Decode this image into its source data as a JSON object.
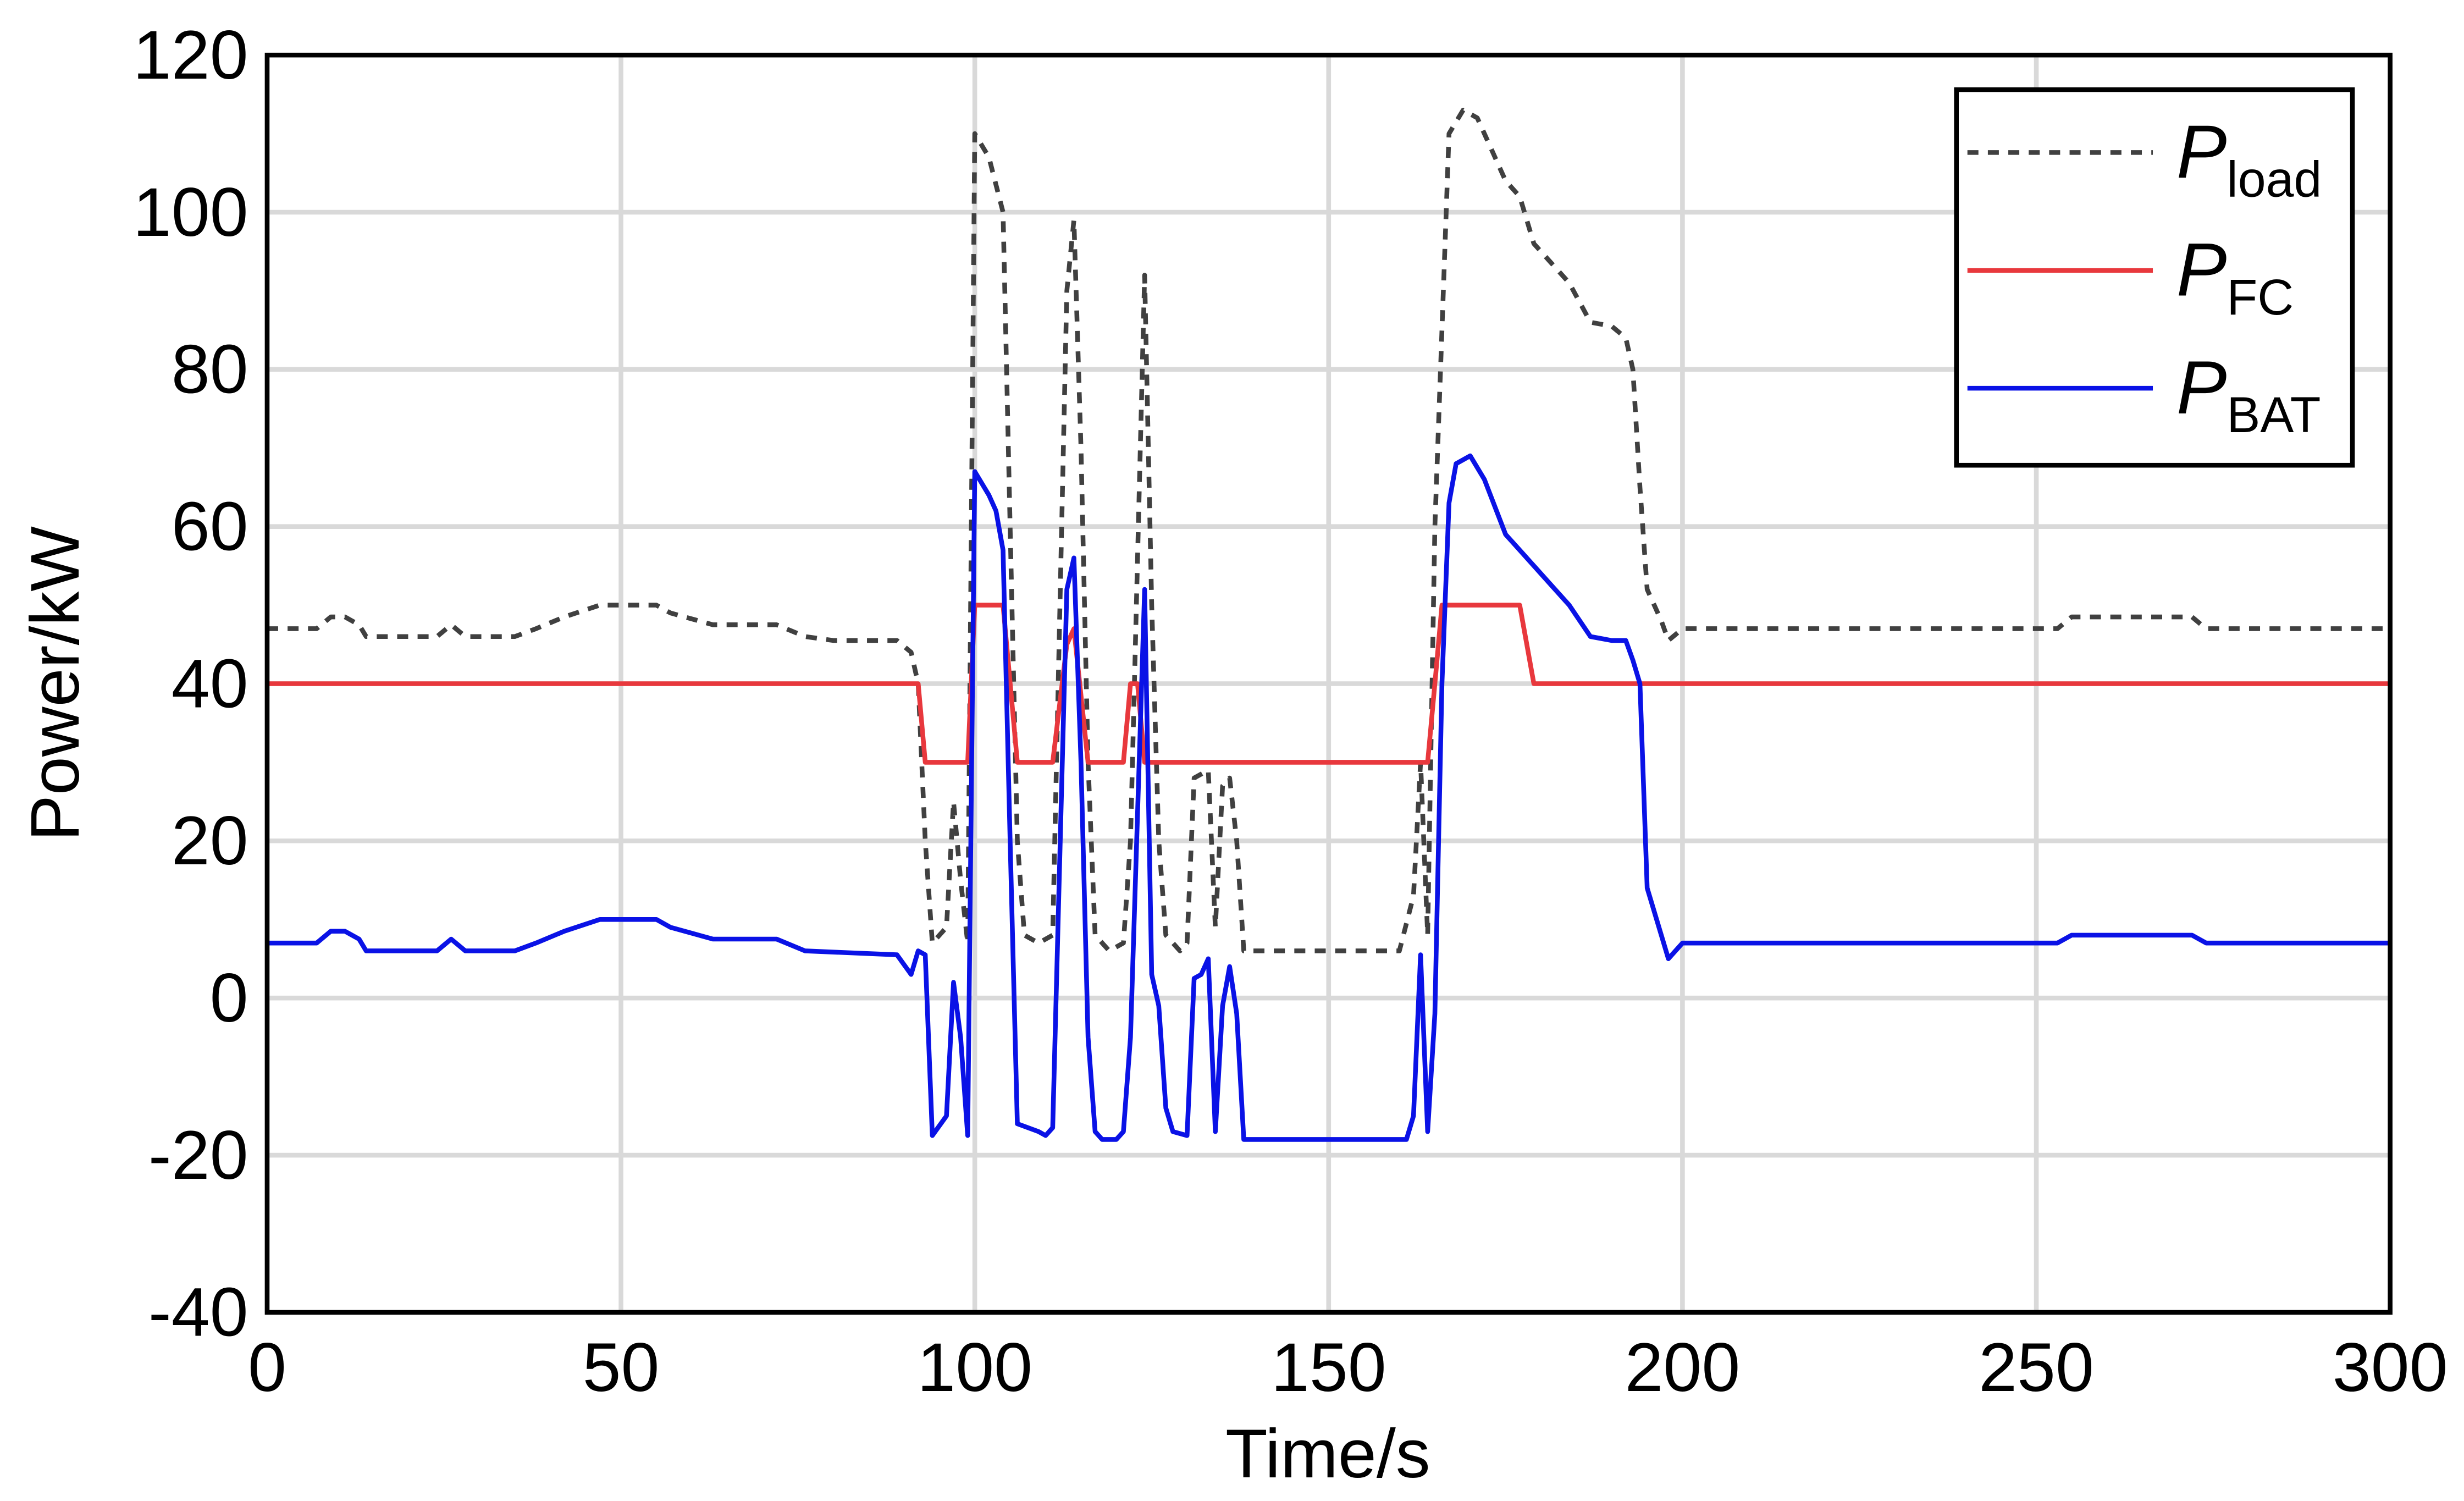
{
  "chart_data": {
    "type": "line",
    "xlabel": "Time/s",
    "ylabel": "Power/kW",
    "xlim": [
      0,
      300
    ],
    "ylim": [
      -40,
      120
    ],
    "xticks": [
      0,
      50,
      100,
      150,
      200,
      250,
      300
    ],
    "yticks": [
      -40,
      -20,
      0,
      20,
      40,
      60,
      80,
      100,
      120
    ],
    "grid": true,
    "legend": "upper right",
    "series": [
      {
        "name": "P",
        "subscript": "load",
        "color": "#404040",
        "dash": true,
        "x": [
          0,
          7,
          9,
          11,
          13,
          14,
          24,
          26,
          28,
          35,
          38,
          42,
          47,
          55,
          57,
          63,
          72,
          76,
          80,
          89,
          91,
          92,
          93,
          94,
          96,
          97,
          98,
          99,
          100,
          102,
          104,
          105,
          106,
          107,
          109,
          111,
          113,
          114,
          115,
          116,
          117,
          119,
          121,
          122,
          124,
          125,
          126,
          127,
          129,
          130,
          131,
          133,
          134,
          135,
          136,
          137,
          138,
          160,
          162,
          163,
          164,
          165,
          166,
          167,
          169,
          171,
          173,
          175,
          177,
          179,
          181,
          184,
          187,
          190,
          192,
          193,
          194,
          195,
          197,
          198,
          200,
          253,
          255,
          272,
          274,
          300
        ],
        "values": [
          47,
          47,
          48.5,
          48.5,
          47.5,
          46,
          46,
          47.5,
          46,
          46,
          47,
          48.5,
          50,
          50,
          49,
          47.5,
          47.5,
          46,
          45.5,
          45.5,
          44,
          40,
          20,
          7,
          9,
          25,
          15,
          7,
          110,
          107,
          100,
          60,
          20,
          8,
          7,
          8,
          90,
          99,
          70,
          30,
          8,
          6,
          7,
          20,
          92,
          50,
          20,
          8,
          6,
          7,
          28,
          29,
          9,
          27,
          28,
          20,
          6,
          6,
          13,
          30,
          8,
          60,
          85,
          110,
          113,
          112,
          108,
          104,
          102,
          96,
          94,
          91,
          86,
          85.5,
          84,
          80,
          65,
          52,
          48,
          45.5,
          47,
          47,
          48.5,
          48.5,
          47,
          47
        ]
      },
      {
        "name": "P",
        "subscript": "FC",
        "color": "#e8383d",
        "dash": false,
        "x": [
          0,
          92,
          93,
          99,
          100,
          104,
          106,
          111,
          113,
          114,
          116,
          121,
          122,
          123,
          124,
          164,
          165,
          166,
          177,
          179,
          300
        ],
        "values": [
          40,
          40,
          30,
          30,
          50,
          50,
          30,
          30,
          45,
          47,
          30,
          30,
          40,
          40,
          30,
          30,
          40,
          50,
          50,
          40,
          40
        ]
      },
      {
        "name": "P",
        "subscript": "BAT",
        "color": "#0a12e6",
        "dash": false,
        "x": [
          0,
          7,
          9,
          11,
          13,
          14,
          24,
          26,
          28,
          35,
          38,
          42,
          47,
          55,
          57,
          63,
          72,
          76,
          89,
          91,
          92,
          93,
          94,
          96,
          97,
          98,
          99,
          100,
          102,
          103,
          104,
          105,
          106,
          109,
          110,
          111,
          113,
          114,
          115,
          116,
          117,
          118,
          120,
          121,
          122,
          124,
          125,
          126,
          127,
          128,
          130,
          131,
          132,
          133,
          134,
          135,
          136,
          137,
          138,
          161,
          162,
          163,
          164,
          165,
          166,
          167,
          168,
          170,
          172,
          175,
          177,
          179,
          181,
          184,
          187,
          190,
          192,
          193,
          194,
          195,
          197,
          198,
          200,
          253,
          255,
          272,
          274,
          300
        ],
        "values": [
          7,
          7,
          8.5,
          8.5,
          7.5,
          6,
          6,
          7.5,
          6,
          6,
          7,
          8.5,
          10,
          10,
          9,
          7.5,
          7.5,
          6,
          5.5,
          3,
          6,
          5.5,
          -17.5,
          -15,
          2,
          -5,
          -17.5,
          67,
          64,
          62,
          57,
          20,
          -16,
          -17,
          -17.5,
          -16.5,
          52,
          56,
          30,
          -5,
          -17,
          -18,
          -18,
          -17,
          -5,
          52,
          3,
          -1,
          -14,
          -17,
          -17.5,
          2.5,
          3,
          5,
          -17,
          -1,
          4,
          -2,
          -18,
          -18,
          -15,
          5.5,
          -17,
          -2,
          40,
          63,
          68,
          69,
          66,
          59,
          57,
          55,
          53,
          50,
          46,
          45.5,
          45.5,
          43,
          40,
          14,
          8,
          5,
          7,
          7,
          8,
          8,
          7,
          7
        ]
      }
    ]
  }
}
